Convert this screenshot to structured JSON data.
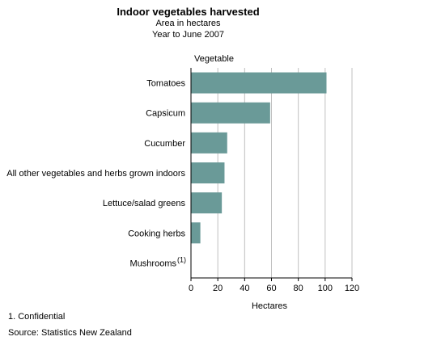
{
  "chart_data": {
    "type": "bar",
    "orientation": "horizontal",
    "title": "Indoor vegetables harvested",
    "subtitle_lines": [
      "Area in hectares",
      "Year to June 2007"
    ],
    "category_axis_label": "Vegetable",
    "xlabel": "Hectares",
    "categories": [
      "Tomatoes",
      "Capsicum",
      "Cucumber",
      "All other vegetables and herbs grown indoors",
      "Lettuce/salad greens",
      "Cooking herbs",
      "Mushrooms"
    ],
    "category_superscripts": [
      "",
      "",
      "",
      "",
      "",
      "",
      "(1)"
    ],
    "values": [
      101,
      59,
      27,
      25,
      23,
      7,
      null
    ],
    "xlim": [
      0,
      120
    ],
    "xticks": [
      0,
      20,
      40,
      60,
      80,
      100,
      120
    ],
    "grid": true,
    "bar_color": "#6a9a98",
    "grid_color": "#c0c0c0"
  },
  "footnotes": {
    "note1": "1. Confidential",
    "source_label": "Source:",
    "source_text": "Statistics New Zealand"
  }
}
